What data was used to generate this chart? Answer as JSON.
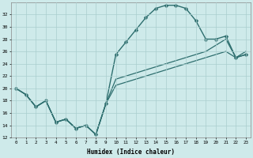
{
  "xlabel": "Humidex (Indice chaleur)",
  "bg_color": "#ceeaea",
  "line_color": "#2d6e6e",
  "grid_color": "#aacece",
  "xlim": [
    -0.5,
    23.5
  ],
  "ylim": [
    12,
    34
  ],
  "yticks": [
    12,
    14,
    16,
    18,
    20,
    22,
    24,
    26,
    28,
    30,
    32
  ],
  "xticks": [
    0,
    1,
    2,
    3,
    4,
    5,
    6,
    7,
    8,
    9,
    10,
    11,
    12,
    13,
    14,
    15,
    16,
    17,
    18,
    19,
    20,
    21,
    22,
    23
  ],
  "series": [
    {
      "x": [
        0,
        1,
        2,
        3,
        4,
        5,
        6,
        7,
        8,
        9,
        10,
        11,
        12,
        13,
        14,
        15,
        16,
        17,
        18,
        19,
        20,
        21,
        22,
        23
      ],
      "y": [
        20,
        19,
        17,
        18,
        14.5,
        15,
        13.5,
        14,
        12.5,
        17.5,
        25.5,
        27.5,
        29.5,
        31.5,
        33,
        33.5,
        33.5,
        33,
        31,
        28,
        28,
        28.5,
        25,
        25.5
      ],
      "has_marker": true,
      "markersize": 2.5,
      "linewidth": 1.0
    },
    {
      "x": [
        0,
        1,
        2,
        3,
        4,
        5,
        6,
        7,
        8,
        9,
        10,
        11,
        12,
        13,
        14,
        15,
        16,
        17,
        18,
        19,
        20,
        21,
        22,
        23
      ],
      "y": [
        20,
        19,
        17,
        18,
        14.5,
        15,
        13.5,
        14,
        12.5,
        17.5,
        21.5,
        22,
        22.5,
        23,
        23.5,
        24,
        24.5,
        25,
        25.5,
        26,
        27,
        28,
        25,
        26
      ],
      "has_marker": false,
      "markersize": 0,
      "linewidth": 0.9
    },
    {
      "x": [
        0,
        1,
        2,
        3,
        4,
        5,
        6,
        7,
        8,
        9,
        10,
        11,
        12,
        13,
        14,
        15,
        16,
        17,
        18,
        19,
        20,
        21,
        22,
        23
      ],
      "y": [
        20,
        19,
        17,
        18,
        14.5,
        15,
        13.5,
        14,
        12.5,
        17.5,
        20.5,
        21,
        21.5,
        22,
        22.5,
        23,
        23.5,
        24,
        24.5,
        25,
        25.5,
        26,
        25,
        25.5
      ],
      "has_marker": false,
      "markersize": 0,
      "linewidth": 0.9
    }
  ]
}
